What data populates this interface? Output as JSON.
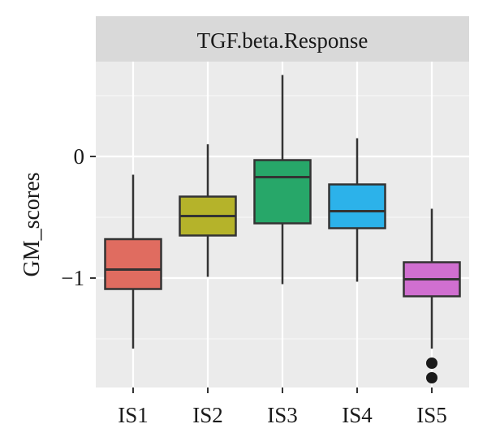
{
  "chart_data": {
    "type": "boxplot",
    "facet_title": "TGF.beta.Response",
    "xlabel": "",
    "ylabel": "GM_scores",
    "categories": [
      "IS1",
      "IS2",
      "IS3",
      "IS4",
      "IS5"
    ],
    "ylim": [
      -1.9,
      0.78
    ],
    "y_ticks": [
      0,
      -1
    ],
    "y_tick_labels": [
      "0",
      "−1"
    ],
    "grid": true,
    "boxes": [
      {
        "category": "IS1",
        "color": "#e06c60",
        "whisker_low": -1.58,
        "q1": -1.09,
        "median": -0.93,
        "q3": -0.68,
        "whisker_high": -0.15,
        "outliers": []
      },
      {
        "category": "IS2",
        "color": "#b5b32a",
        "whisker_low": -0.99,
        "q1": -0.65,
        "median": -0.49,
        "q3": -0.33,
        "whisker_high": 0.1,
        "outliers": []
      },
      {
        "category": "IS3",
        "color": "#27a769",
        "whisker_low": -1.05,
        "q1": -0.55,
        "median": -0.17,
        "q3": -0.03,
        "whisker_high": 0.67,
        "outliers": []
      },
      {
        "category": "IS4",
        "color": "#2cb2ea",
        "whisker_low": -1.03,
        "q1": -0.59,
        "median": -0.45,
        "q3": -0.23,
        "whisker_high": 0.15,
        "outliers": []
      },
      {
        "category": "IS5",
        "color": "#d06fd0",
        "whisker_low": -1.58,
        "q1": -1.15,
        "median": -1.01,
        "q3": -0.87,
        "whisker_high": -0.43,
        "outliers": [
          -1.7,
          -1.82
        ]
      }
    ]
  }
}
